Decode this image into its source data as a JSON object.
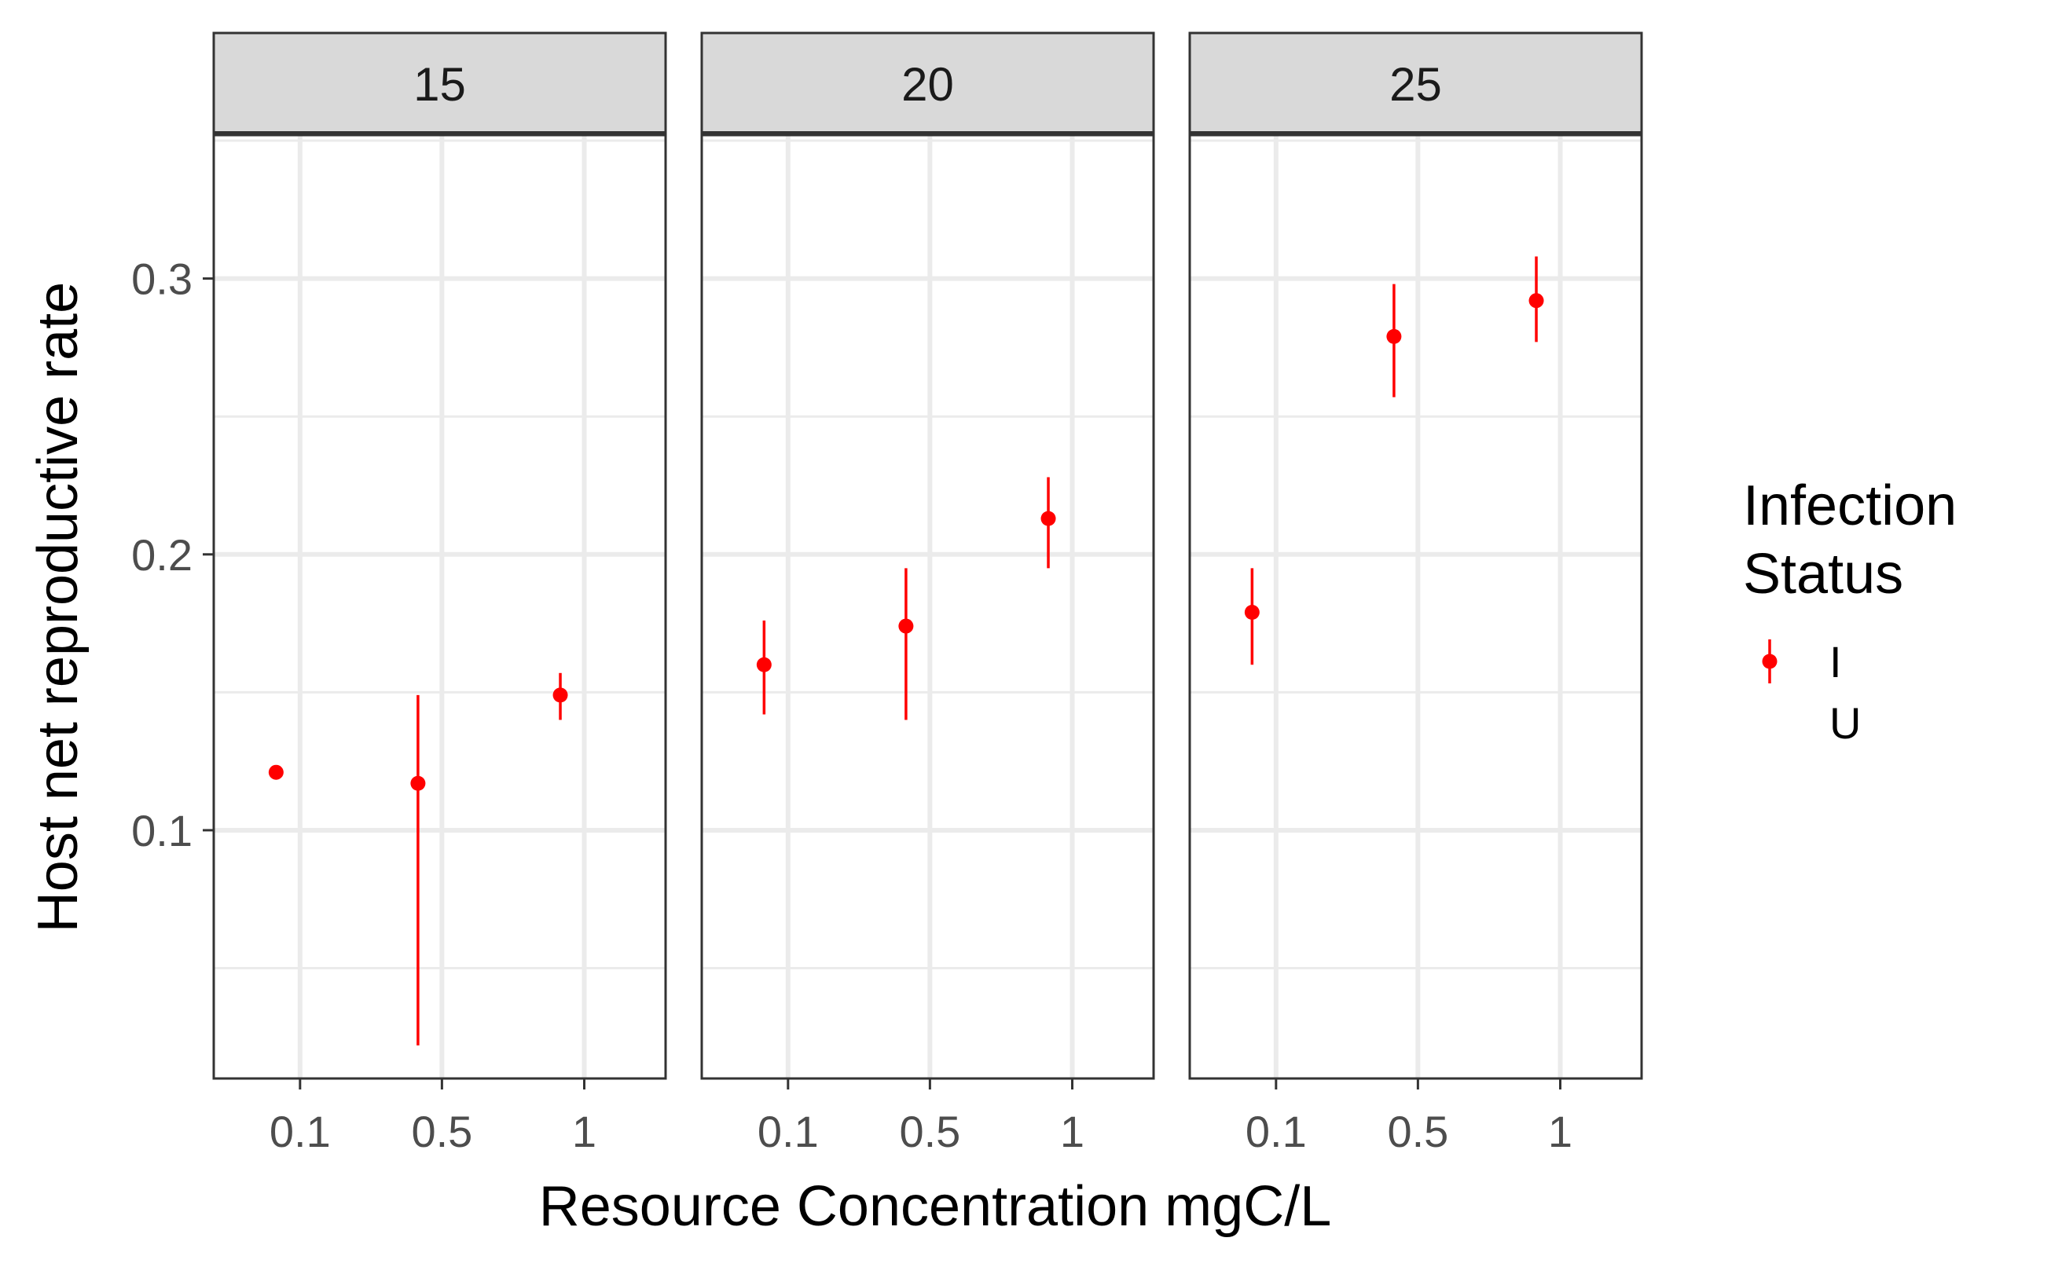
{
  "chart_data": {
    "type": "scatter",
    "subtype": "point-range, faceted",
    "facet_labels": [
      "15",
      "20",
      "25"
    ],
    "xlabel": "Resource Concentration mgC/L",
    "ylabel": "Host net reproductive rate",
    "x_categories": [
      "0.1",
      "0.5",
      "1"
    ],
    "y_ticks": [
      0.1,
      0.2,
      0.3
    ],
    "y_tick_labels": [
      "0.1",
      "0.2",
      "0.3"
    ],
    "ylim": [
      0.01,
      0.352
    ],
    "grid": true,
    "legend": {
      "title_lines": [
        "Infection",
        "Status"
      ],
      "placement": "right",
      "entries": [
        {
          "label": "I",
          "color": "#ff0000",
          "shown": true
        },
        {
          "label": "U",
          "color": "#00bfc4",
          "shown": false
        }
      ]
    },
    "series": [
      {
        "name": "I",
        "color": "#ff0000",
        "points": [
          {
            "facet": "15",
            "x": "0.1",
            "y": 0.121,
            "ymin": 0.121,
            "ymax": 0.121
          },
          {
            "facet": "15",
            "x": "0.5",
            "y": 0.117,
            "ymin": 0.022,
            "ymax": 0.149
          },
          {
            "facet": "15",
            "x": "1",
            "y": 0.149,
            "ymin": 0.14,
            "ymax": 0.157
          },
          {
            "facet": "20",
            "x": "0.1",
            "y": 0.16,
            "ymin": 0.142,
            "ymax": 0.176
          },
          {
            "facet": "20",
            "x": "0.5",
            "y": 0.174,
            "ymin": 0.14,
            "ymax": 0.195
          },
          {
            "facet": "20",
            "x": "1",
            "y": 0.213,
            "ymin": 0.195,
            "ymax": 0.228
          },
          {
            "facet": "25",
            "x": "0.1",
            "y": 0.179,
            "ymin": 0.16,
            "ymax": 0.195
          },
          {
            "facet": "25",
            "x": "0.5",
            "y": 0.279,
            "ymin": 0.257,
            "ymax": 0.298
          },
          {
            "facet": "25",
            "x": "1",
            "y": 0.292,
            "ymin": 0.277,
            "ymax": 0.308
          }
        ]
      }
    ],
    "colors": {
      "point": "#ff0000",
      "grid": "#ebebeb",
      "strip": "#d9d9d9",
      "border": "#333333"
    }
  }
}
